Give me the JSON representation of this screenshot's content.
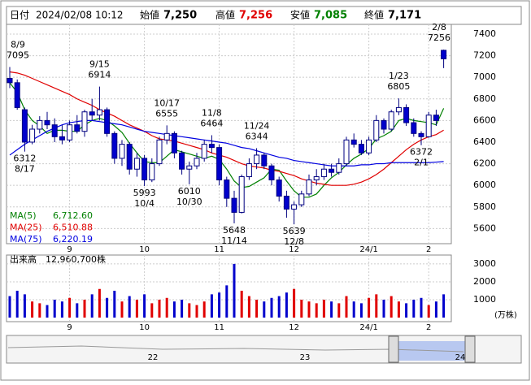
{
  "chart_data": {
    "type": "candlestick",
    "header": {
      "date_name": "日付",
      "date": "2024/02/08 10:12",
      "items": [
        {
          "name": "始値",
          "value": "7,250",
          "color": "#000000"
        },
        {
          "name": "高値",
          "value": "7,256",
          "color": "#e00000"
        },
        {
          "name": "安値",
          "value": "7,085",
          "color": "#008000"
        },
        {
          "name": "終値",
          "value": "7,171",
          "color": "#000000"
        }
      ]
    },
    "categories": [
      null,
      null,
      null,
      null,
      null,
      null,
      null,
      null,
      "9",
      null,
      null,
      null,
      null,
      null,
      null,
      null,
      null,
      null,
      "10",
      null,
      null,
      null,
      null,
      null,
      null,
      null,
      null,
      null,
      "11",
      null,
      null,
      null,
      null,
      null,
      null,
      null,
      null,
      null,
      "12",
      null,
      null,
      null,
      null,
      null,
      null,
      null,
      null,
      null,
      "24/1",
      null,
      null,
      null,
      null,
      null,
      null,
      null,
      "2",
      null,
      null
    ],
    "open": [
      6990,
      6950,
      6700,
      6400,
      6520,
      6600,
      6560,
      6450,
      6420,
      6560,
      6500,
      6680,
      6650,
      6700,
      6480,
      6250,
      6380,
      6150,
      6250,
      6050,
      6200,
      6420,
      6480,
      6300,
      6150,
      6180,
      6250,
      6380,
      6350,
      6050,
      5880,
      5750,
      6080,
      6200,
      6280,
      6180,
      6050,
      5900,
      5780,
      5820,
      5920,
      6050,
      6080,
      6150,
      6120,
      6200,
      6420,
      6380,
      6300,
      6420,
      6600,
      6520,
      6680,
      6720,
      6580,
      6480,
      6450,
      6650,
      7250
    ],
    "high": [
      7095,
      6980,
      6720,
      6560,
      6640,
      6680,
      6620,
      6560,
      6600,
      6650,
      6700,
      6800,
      6914,
      6720,
      6500,
      6420,
      6400,
      6300,
      6280,
      6250,
      6450,
      6555,
      6500,
      6320,
      6220,
      6300,
      6420,
      6464,
      6380,
      6080,
      5950,
      6100,
      6250,
      6344,
      6300,
      6200,
      6080,
      5950,
      5850,
      5950,
      6100,
      6150,
      6200,
      6200,
      6250,
      6450,
      6480,
      6420,
      6450,
      6650,
      6620,
      6700,
      6805,
      6750,
      6620,
      6500,
      6680,
      6700,
      7256
    ],
    "low": [
      6900,
      6700,
      6312,
      6380,
      6480,
      6520,
      6400,
      6380,
      6400,
      6480,
      6450,
      6600,
      6600,
      6450,
      6200,
      6180,
      6100,
      6080,
      5993,
      6030,
      6180,
      6380,
      6250,
      6100,
      6010,
      6150,
      6220,
      6300,
      6000,
      5800,
      5648,
      5740,
      6050,
      6150,
      6150,
      6000,
      5850,
      5700,
      5639,
      5800,
      5900,
      6000,
      6050,
      6080,
      6100,
      6180,
      6350,
      6280,
      6280,
      6400,
      6480,
      6500,
      6650,
      6550,
      6450,
      6372,
      6440,
      6550,
      7085
    ],
    "close": [
      6950,
      6720,
      6400,
      6520,
      6600,
      6560,
      6450,
      6420,
      6560,
      6500,
      6680,
      6650,
      6700,
      6480,
      6250,
      6380,
      6150,
      6250,
      6050,
      6200,
      6420,
      6480,
      6300,
      6150,
      6180,
      6250,
      6380,
      6350,
      6050,
      5880,
      5750,
      6080,
      6200,
      6280,
      6180,
      6050,
      5900,
      5780,
      5820,
      5920,
      6050,
      6080,
      6150,
      6120,
      6200,
      6420,
      6380,
      6300,
      6420,
      6600,
      6520,
      6680,
      6720,
      6580,
      6480,
      6450,
      6650,
      6600,
      7171
    ],
    "up_color": "#ffffff",
    "down_color": "#0000cc",
    "edge_color": "#000080",
    "ylim": [
      5460,
      7490
    ],
    "yticks": [
      5600,
      5800,
      6000,
      6200,
      6400,
      6600,
      6800,
      7000,
      7200,
      7400
    ],
    "grid": true,
    "ma": [
      {
        "name": "MA(5)",
        "color": "#008000",
        "legend_value": {
          "value": 6712.6,
          "label": "6,712.60"
        },
        "values": [
          6950,
          6860,
          6700,
          6600,
          6550,
          6480,
          6510,
          6510,
          6500,
          6500,
          6560,
          6600,
          6620,
          6600,
          6550,
          6490,
          6390,
          6300,
          6220,
          6210,
          6210,
          6270,
          6330,
          6310,
          6290,
          6270,
          6250,
          6270,
          6240,
          6150,
          6040,
          5980,
          5990,
          6030,
          6070,
          6150,
          6140,
          6040,
          5950,
          5890,
          5890,
          5920,
          6000,
          6070,
          6120,
          6190,
          6250,
          6290,
          6340,
          6430,
          6460,
          6500,
          6600,
          6620,
          6600,
          6590,
          6580,
          6560,
          6712.6
        ]
      },
      {
        "name": "MA(25)",
        "color": "#e00000",
        "legend_value": {
          "value": 6510.88,
          "label": "6,510.88"
        },
        "values": [
          7050,
          7040,
          7020,
          6990,
          6960,
          6930,
          6900,
          6870,
          6840,
          6800,
          6770,
          6740,
          6700,
          6670,
          6640,
          6600,
          6560,
          6530,
          6500,
          6460,
          6430,
          6420,
          6410,
          6390,
          6370,
          6350,
          6330,
          6300,
          6280,
          6260,
          6230,
          6200,
          6180,
          6170,
          6160,
          6140,
          6130,
          6110,
          6090,
          6060,
          6040,
          6020,
          6010,
          6000,
          6000,
          6000,
          6010,
          6030,
          6060,
          6100,
          6150,
          6210,
          6270,
          6330,
          6380,
          6420,
          6450,
          6470,
          6510.88
        ]
      },
      {
        "name": "MA(75)",
        "color": "#0000e0",
        "legend_value": {
          "value": 6220.19,
          "label": "6,220.19"
        },
        "values": [
          6280,
          6330,
          6380,
          6420,
          6460,
          6500,
          6530,
          6560,
          6580,
          6590,
          6600,
          6600,
          6590,
          6580,
          6570,
          6560,
          6540,
          6520,
          6500,
          6490,
          6480,
          6470,
          6460,
          6450,
          6440,
          6430,
          6420,
          6410,
          6400,
          6390,
          6370,
          6350,
          6340,
          6320,
          6300,
          6280,
          6260,
          6250,
          6230,
          6220,
          6210,
          6200,
          6190,
          6180,
          6180,
          6180,
          6180,
          6190,
          6190,
          6200,
          6200,
          6210,
          6210,
          6210,
          6210,
          6210,
          6210,
          6215,
          6220.19
        ]
      }
    ],
    "annotations": [
      {
        "date": "8/9",
        "value": 7095
      },
      {
        "date": "8/17",
        "value": 6312
      },
      {
        "date": "9/15",
        "value": 6914
      },
      {
        "date": "10/4",
        "value": 5993
      },
      {
        "date": "10/17",
        "value": 6555
      },
      {
        "date": "10/30",
        "value": 6010
      },
      {
        "date": "11/8",
        "value": 6464
      },
      {
        "date": "11/14",
        "value": 5648
      },
      {
        "date": "11/24",
        "value": 6344
      },
      {
        "date": "12/8",
        "value": 5639
      },
      {
        "date": "1/23",
        "value": 6805
      },
      {
        "date": "2/1",
        "value": 6372
      },
      {
        "date": "2/8",
        "value": 7256
      }
    ],
    "volume": {
      "title": "出来高　12,960,700株",
      "unit": "(万株)",
      "up_color": "#e00000",
      "down_color": "#0000cc",
      "ylim": [
        0,
        3450
      ],
      "yticks": [
        1000,
        2000,
        3000
      ],
      "values": [
        1200,
        1500,
        1300,
        900,
        800,
        700,
        1000,
        900,
        1100,
        800,
        1000,
        1300,
        1600,
        1100,
        1500,
        900,
        1200,
        1000,
        1300,
        800,
        1000,
        1100,
        900,
        1000,
        800,
        700,
        900,
        1300,
        1400,
        1800,
        3000,
        1500,
        1200,
        1000,
        900,
        1100,
        1200,
        1400,
        1600,
        1000,
        900,
        800,
        1000,
        900,
        800,
        1200,
        900,
        800,
        1100,
        1300,
        1000,
        1200,
        900,
        800,
        1000,
        1100,
        700,
        900,
        1300
      ]
    },
    "navigator": {
      "labels": [
        "22",
        "23",
        "24"
      ]
    }
  }
}
